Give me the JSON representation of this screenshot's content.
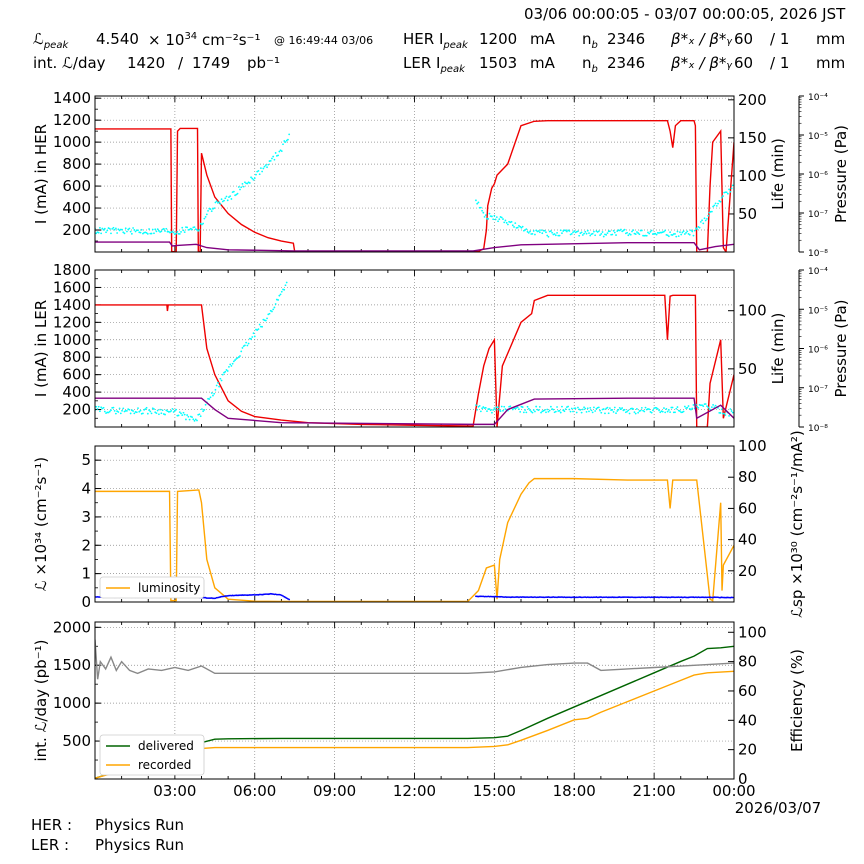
{
  "header": {
    "time_range": "03/06 00:00:05 - 03/07 00:00:05, 2026 JST",
    "lpeak_label": "ℒ",
    "lpeak_sub": "peak",
    "lpeak_value": "4.540",
    "lpeak_unit_pre": "× 10",
    "lpeak_exp": "34",
    "lpeak_unit": "cm⁻²s⁻¹",
    "lpeak_time": "@ 16:49:44 03/06",
    "intl_label": "int. ℒ/day",
    "intl_recorded": "1420",
    "intl_sep": "/",
    "intl_delivered": "1749",
    "intl_unit": "pb⁻¹",
    "her_label": "HER I",
    "ler_label": "LER I",
    "ipeak_sub": "peak",
    "her_current": "1200",
    "ler_current": "1503",
    "current_unit": "mA",
    "nb_label": "n",
    "nb_sub": "b",
    "her_nb": "2346",
    "ler_nb": "2346",
    "beta_label": "β*ₓ / β*ᵧ",
    "her_beta_x": "60",
    "her_beta_y": "/ 1",
    "ler_beta_x": "60",
    "ler_beta_y": "/ 1",
    "beta_unit": "mm"
  },
  "footer": {
    "her_label": "HER :",
    "her_status": "Physics Run",
    "ler_label": "LER :",
    "ler_status": "Physics Run"
  },
  "chart_data": [
    {
      "type": "line",
      "panel": "HER",
      "xlabel": "",
      "ylabel": "I (mA) in HER",
      "ylim": [
        0,
        1420
      ],
      "yticks": [
        200,
        400,
        600,
        800,
        1000,
        1200,
        1400
      ],
      "ylabel_right": "Life (min)",
      "ylim_right": [
        0,
        205
      ],
      "yticks_right": [
        50,
        100,
        150,
        200
      ],
      "ylabel_pressure": "Pressure (Pa)",
      "pressure_ticks": [
        "10⁻⁴",
        "10⁻⁵",
        "10⁻⁶",
        "10⁻⁷",
        "10⁻⁸"
      ],
      "grid": true,
      "series": [
        {
          "role": "current",
          "color": "#ee0000",
          "x": [
            0,
            2.85,
            2.88,
            2.95,
            3.0,
            3.05,
            3.1,
            3.2,
            3.3,
            3.4,
            3.5,
            3.6,
            3.7,
            3.8,
            3.85,
            3.88,
            3.95,
            4.0,
            4.2,
            4.5,
            5.0,
            5.5,
            6.0,
            6.5,
            7.0,
            7.45,
            7.5,
            8,
            10,
            12,
            14,
            14.4,
            14.6,
            14.7,
            14.75,
            14.9,
            15.0,
            15.1,
            15.5,
            16.0,
            16.5,
            17.0,
            18,
            19,
            20,
            21,
            21.5,
            21.6,
            21.7,
            21.8,
            22.0,
            22.5,
            22.55,
            22.6,
            23.0,
            23.1,
            23.2,
            23.5,
            23.6,
            23.7,
            24
          ],
          "y": [
            1120,
            1120,
            5,
            3,
            3,
            5,
            1100,
            1125,
            1125,
            1125,
            1125,
            1125,
            1125,
            1125,
            1125,
            5,
            3,
            900,
            700,
            500,
            350,
            250,
            180,
            130,
            100,
            80,
            5,
            5,
            5,
            5,
            5,
            5,
            30,
            200,
            420,
            580,
            620,
            700,
            800,
            1150,
            1190,
            1195,
            1195,
            1195,
            1195,
            1195,
            1195,
            1100,
            950,
            1150,
            1195,
            1195,
            1150,
            0,
            0,
            600,
            1000,
            1100,
            40,
            0,
            1000
          ]
        },
        {
          "role": "life",
          "color": "#00ffff",
          "x": [
            0,
            1,
            2,
            2.8,
            3.1,
            3.6,
            3.9,
            4.2,
            4.6,
            5.0,
            5.5,
            6.0,
            6.5,
            7.0,
            7.3,
            14.3,
            14.6,
            15.0,
            15.5,
            16.0,
            17,
            18,
            19,
            20,
            21,
            22,
            22.5,
            23.5,
            23.8,
            24
          ],
          "y": [
            28,
            28,
            27,
            28,
            26,
            32,
            30,
            50,
            65,
            70,
            85,
            100,
            115,
            135,
            155,
            70,
            48,
            45,
            40,
            30,
            24,
            25,
            24,
            26,
            25,
            24,
            25,
            70,
            80,
            90
          ]
        },
        {
          "role": "pressure",
          "color": "#800080",
          "x": [
            0,
            2.8,
            2.9,
            3.1,
            3.8,
            4.2,
            5,
            7.5,
            14.2,
            15,
            16,
            20,
            21.5,
            22.5,
            22.7,
            23.3,
            24
          ],
          "y": [
            90,
            90,
            55,
            60,
            70,
            40,
            20,
            10,
            10,
            40,
            65,
            85,
            85,
            85,
            20,
            50,
            70
          ]
        }
      ]
    },
    {
      "type": "line",
      "panel": "LER",
      "xlabel": "",
      "ylabel": "I (mA) in LER",
      "ylim": [
        0,
        1800
      ],
      "yticks": [
        200,
        400,
        600,
        800,
        1000,
        1200,
        1400,
        1600,
        1800
      ],
      "ylabel_right": "Life (min)",
      "ylim_right": [
        0,
        135
      ],
      "yticks_right": [
        50,
        100
      ],
      "ylabel_pressure": "Pressure (Pa)",
      "pressure_ticks": [
        "10⁻⁴",
        "10⁻⁵",
        "10⁻⁶",
        "10⁻⁷",
        "10⁻⁸"
      ],
      "grid": true,
      "series": [
        {
          "role": "current",
          "color": "#ee0000",
          "x": [
            0,
            2.7,
            2.72,
            2.75,
            4.0,
            4.2,
            4.5,
            5.0,
            5.5,
            6.0,
            7.0,
            8.0,
            10,
            12,
            14.2,
            14.4,
            14.6,
            14.8,
            15.0,
            15.1,
            15.3,
            16.0,
            16.4,
            16.5,
            17.0,
            18,
            20,
            21,
            21.4,
            21.5,
            21.6,
            21.7,
            22.0,
            22.5,
            22.55,
            22.6,
            23.0,
            23.1,
            23.5,
            23.6,
            24
          ],
          "y": [
            1400,
            1400,
            1330,
            1400,
            1400,
            900,
            600,
            300,
            180,
            120,
            80,
            50,
            30,
            20,
            10,
            380,
            700,
            900,
            1000,
            0,
            700,
            1200,
            1300,
            1450,
            1510,
            1510,
            1510,
            1510,
            1510,
            1000,
            1500,
            1510,
            1510,
            1510,
            1510,
            0,
            0,
            500,
            1000,
            100,
            600
          ]
        },
        {
          "role": "life",
          "color": "#00ffff",
          "x": [
            0,
            1,
            2,
            3,
            3.8,
            4.2,
            4.6,
            5.0,
            5.5,
            6.0,
            6.5,
            7.0,
            7.2,
            14.3,
            14.6,
            15.0,
            15.5,
            16.0,
            18,
            20,
            22,
            23,
            23.8,
            24
          ],
          "y": [
            15,
            14,
            14,
            13,
            5,
            20,
            35,
            50,
            65,
            80,
            95,
            115,
            125,
            18,
            15,
            14,
            16,
            15,
            15,
            14,
            15,
            18,
            12,
            15
          ]
        },
        {
          "role": "pressure",
          "color": "#800080",
          "x": [
            0,
            2.7,
            3.5,
            4.0,
            4.5,
            5.0,
            7,
            14.2,
            15.0,
            15.5,
            16.5,
            20,
            21.5,
            22.5,
            22.6,
            23.5,
            24
          ],
          "y": [
            330,
            330,
            330,
            330,
            200,
            100,
            50,
            30,
            30,
            200,
            320,
            330,
            330,
            330,
            100,
            250,
            100
          ]
        }
      ]
    },
    {
      "type": "line",
      "panel": "luminosity",
      "xlabel": "",
      "ylabel": "ℒ ×10³⁴ (cm⁻²s⁻¹)",
      "ylim": [
        0,
        5.5
      ],
      "yticks": [
        0,
        1,
        2,
        3,
        4,
        5
      ],
      "ylabel_right": "ℒsp ×10³⁰ (cm⁻²s⁻¹/mA²)",
      "ylim_right": [
        0,
        100
      ],
      "yticks_right": [
        20,
        40,
        60,
        80,
        100
      ],
      "legend": "bottom-left",
      "grid": true,
      "series": [
        {
          "name": "luminosity",
          "color": "#ffa500",
          "x": [
            0,
            2.8,
            2.85,
            3.05,
            3.1,
            3.9,
            4.0,
            4.2,
            4.5,
            5.0,
            6.0,
            7.0,
            10,
            14,
            14.4,
            14.7,
            15.0,
            15.1,
            15.2,
            15.5,
            16.0,
            16.3,
            16.5,
            17,
            18,
            20,
            21.5,
            21.6,
            21.7,
            22.5,
            22.6,
            23.1,
            23.2,
            23.5,
            23.55,
            23.6,
            24
          ],
          "y": [
            3.9,
            3.9,
            0.05,
            0.05,
            3.9,
            3.95,
            3.5,
            1.5,
            0.5,
            0.1,
            0.03,
            0.02,
            0.02,
            0.02,
            0.4,
            1.2,
            1.3,
            0.1,
            1.5,
            2.8,
            3.8,
            4.2,
            4.35,
            4.35,
            4.35,
            4.3,
            4.3,
            3.3,
            4.3,
            4.3,
            4.3,
            0.1,
            0.05,
            3.5,
            0.4,
            1.3,
            2.0
          ]
        },
        {
          "role": "specific",
          "color": "#0000ff",
          "x": [
            0,
            1,
            2,
            2.8,
            3.1,
            3.8,
            4.2,
            4.5,
            4.8,
            5.0,
            5.4,
            5.8,
            6.2,
            6.6,
            7.0,
            7.3,
            14.3,
            14.6,
            15.0,
            15.5,
            16,
            18,
            20,
            22,
            23.2,
            24
          ],
          "y": [
            3.15,
            3.15,
            3.15,
            3.15,
            3.15,
            3.15,
            2.6,
            2.4,
            3.5,
            4.0,
            4.3,
            4.5,
            4.7,
            5.2,
            4.5,
            1.5,
            3.6,
            3.5,
            3.5,
            3.1,
            3.1,
            3.05,
            3.05,
            3.0,
            3.0,
            2.8
          ]
        }
      ]
    },
    {
      "type": "line",
      "panel": "integrated",
      "xlabel": "",
      "ylabel": "int. ℒ/day (pb⁻¹)",
      "ylim": [
        0,
        2070
      ],
      "yticks": [
        500,
        1000,
        1500,
        2000
      ],
      "ylabel_right": "Efficiency (%)",
      "ylim_right": [
        0,
        107
      ],
      "yticks_right": [
        0,
        20,
        40,
        60,
        80,
        100
      ],
      "xticks": [
        "03:00",
        "06:00",
        "09:00",
        "12:00",
        "15:00",
        "18:00",
        "21:00",
        "00:00"
      ],
      "xtick_positions": [
        3,
        6,
        9,
        12,
        15,
        18,
        21,
        24
      ],
      "date_label": "2026/03/07",
      "legend": "bottom-left",
      "grid": true,
      "series": [
        {
          "name": "delivered",
          "color": "#006400",
          "x": [
            0,
            1,
            2,
            2.8,
            3.1,
            3.9,
            4.5,
            5,
            7,
            10,
            14,
            15,
            15.5,
            16,
            17,
            18,
            19,
            20,
            21,
            22,
            22.5,
            23,
            23.5,
            24
          ],
          "y": [
            10,
            120,
            250,
            360,
            370,
            470,
            525,
            530,
            535,
            535,
            535,
            545,
            565,
            640,
            800,
            950,
            1100,
            1250,
            1400,
            1550,
            1620,
            1720,
            1730,
            1749
          ]
        },
        {
          "name": "recorded",
          "color": "#ffa500",
          "x": [
            0,
            1,
            2,
            2.8,
            3.1,
            3.9,
            4.5,
            5,
            7,
            10,
            14,
            15,
            15.5,
            16,
            17,
            18,
            18.5,
            19,
            20,
            21,
            22,
            22.5,
            23,
            23.5,
            24
          ],
          "y": [
            10,
            110,
            220,
            330,
            340,
            400,
            415,
            415,
            415,
            415,
            415,
            430,
            450,
            510,
            640,
            780,
            800,
            880,
            1020,
            1160,
            1300,
            1370,
            1400,
            1410,
            1420
          ]
        },
        {
          "role": "efficiency",
          "color": "#888888",
          "x": [
            0,
            0.1,
            0.2,
            0.4,
            0.6,
            0.8,
            1.0,
            1.3,
            1.6,
            2.0,
            2.5,
            3.0,
            3.5,
            4.0,
            4.5,
            5,
            10,
            14,
            15,
            16,
            17,
            18,
            18.5,
            19,
            20,
            21,
            22,
            23,
            24
          ],
          "y": [
            95,
            68,
            80,
            75,
            83,
            74,
            80,
            74,
            72,
            75,
            74,
            76,
            74,
            77,
            72,
            72,
            72,
            72,
            73,
            76,
            78,
            79,
            79,
            74,
            75,
            76,
            77,
            78,
            79
          ]
        }
      ]
    }
  ]
}
